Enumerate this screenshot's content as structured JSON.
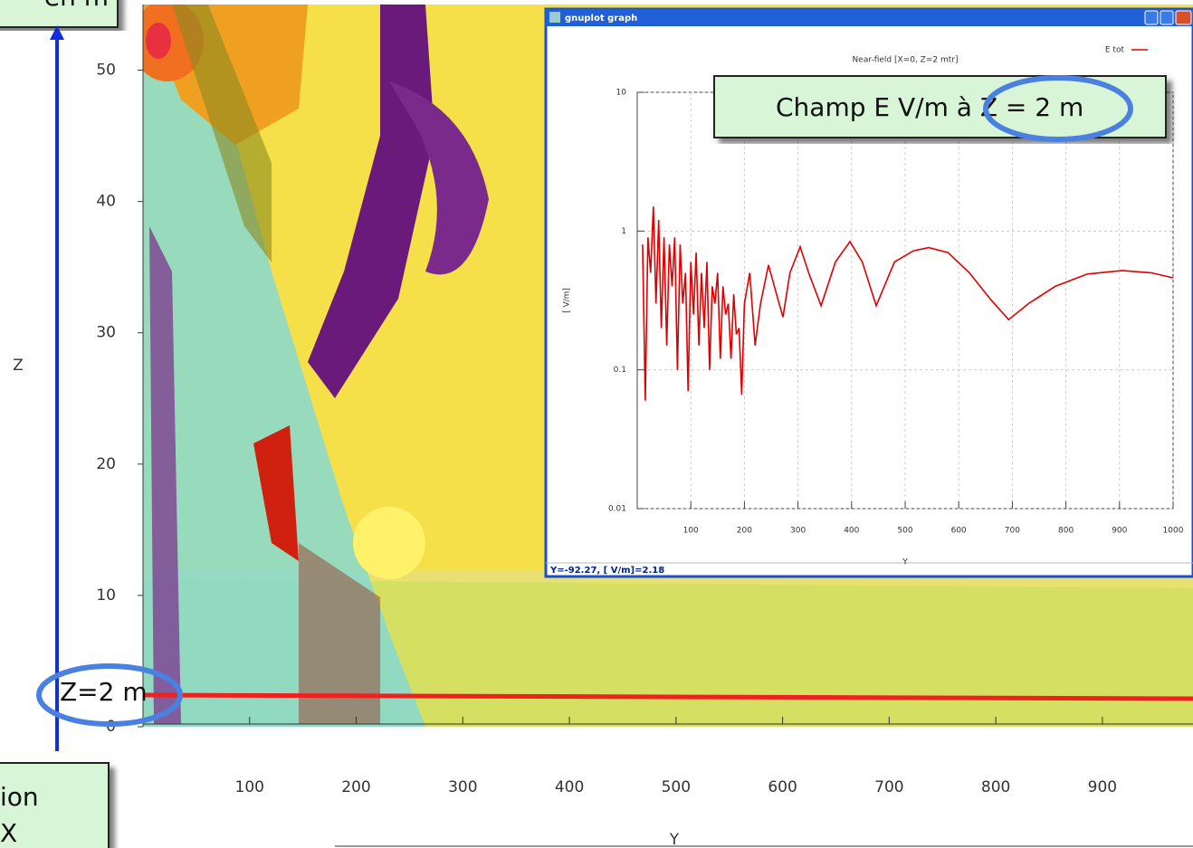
{
  "chart_data": [
    {
      "type": "contour",
      "x_label": "Y",
      "y_label": "Z",
      "xlim": [
        0,
        985
      ],
      "xticks": [
        100,
        200,
        300,
        400,
        500,
        600,
        700,
        800,
        900
      ],
      "ylim": [
        0,
        55
      ],
      "yticks": [
        0,
        10,
        20,
        30,
        40,
        50
      ],
      "annotations": [
        "en m",
        "Z=2 m",
        "ion",
        "X"
      ]
    },
    {
      "type": "line",
      "window_title": "gnuplot graph",
      "title": "Near-field [X=0, Z=2 mtr]",
      "x_label": "Y",
      "y_label": "[ V/m]",
      "status": "Y=-92.27, [ V/m]=2.18",
      "annotations": [
        "Champ E V/m à Z = 2 m"
      ],
      "log_y": true,
      "grid": true,
      "legend": "upper right",
      "xlim": [
        0,
        1000
      ],
      "xticks": [
        100,
        200,
        300,
        400,
        500,
        600,
        700,
        800,
        900,
        1000
      ],
      "ylim": [
        0.01,
        10
      ],
      "yticks": [
        0.01,
        0.1,
        1,
        10
      ],
      "x": [
        10,
        15,
        20,
        25,
        30,
        35,
        40,
        45,
        50,
        55,
        60,
        65,
        70,
        75,
        80,
        85,
        90,
        95,
        100,
        105,
        110,
        115,
        120,
        125,
        130,
        135,
        140,
        145,
        150,
        155,
        160,
        165,
        170,
        175,
        180,
        185,
        190,
        195,
        200,
        210,
        220,
        230,
        245,
        260,
        272,
        285,
        304,
        320,
        343,
        370,
        397,
        420,
        446,
        480,
        515,
        544,
        580,
        620,
        660,
        693,
        730,
        780,
        840,
        905,
        960,
        1000
      ],
      "series": [
        {
          "name": "E tot",
          "color": "#e00000",
          "values": [
            0.8,
            0.06,
            0.9,
            0.5,
            1.5,
            0.3,
            1.2,
            0.2,
            0.9,
            0.15,
            0.8,
            0.4,
            0.9,
            0.1,
            0.8,
            0.3,
            0.5,
            0.07,
            0.6,
            0.25,
            0.7,
            0.15,
            0.5,
            0.2,
            0.6,
            0.1,
            0.4,
            0.3,
            0.5,
            0.12,
            0.4,
            0.25,
            0.3,
            0.12,
            0.35,
            0.18,
            0.2,
            0.066,
            0.3,
            0.5,
            0.15,
            0.3,
            0.57,
            0.35,
            0.24,
            0.5,
            0.77,
            0.5,
            0.29,
            0.6,
            0.84,
            0.6,
            0.29,
            0.6,
            0.72,
            0.76,
            0.7,
            0.5,
            0.32,
            0.23,
            0.3,
            0.4,
            0.49,
            0.52,
            0.5,
            0.46
          ]
        }
      ]
    }
  ]
}
